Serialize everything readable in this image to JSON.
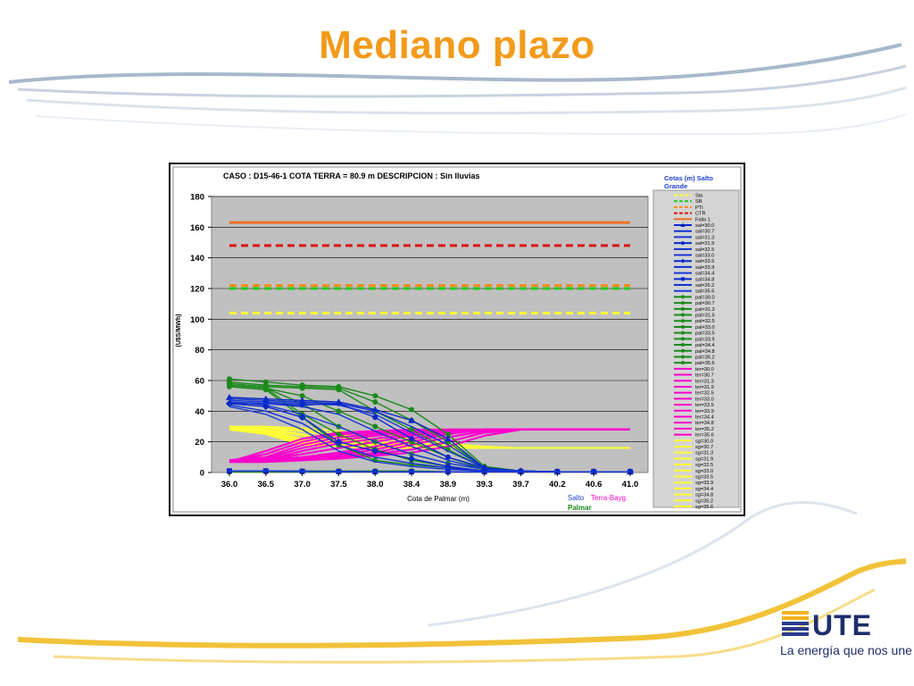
{
  "slide": {
    "title": "Mediano plazo"
  },
  "logo": {
    "text": "UTE",
    "tagline": "La energía que nos une"
  },
  "colors": {
    "title": "#f39a1a",
    "plot_bg": "#c0c0c0",
    "legend_bg": "#d4d4d4",
    "salto": "#1f3fd0",
    "palmar": "#1a8a1a",
    "terra": "#ff00cc",
    "sg": "#ffff33"
  },
  "chart_data": {
    "type": "line",
    "title": "CASO : D15-46-1 COTA TERRA = 80.9 m  DESCRIPCION :    Sin lluvias",
    "xlabel": "Cota de Palmar (m)",
    "ylabel": "(U$S/MWh)",
    "x": [
      36.0,
      36.5,
      37.0,
      37.5,
      38.0,
      38.4,
      38.9,
      39.3,
      39.7,
      40.2,
      40.6,
      41.0
    ],
    "x_ticks": [
      "36.0",
      "36.5",
      "37.0",
      "37.5",
      "38.0",
      "38.4",
      "38.9",
      "39.3",
      "39.7",
      "40.2",
      "40.6",
      "41.0"
    ],
    "ylim": [
      0,
      180
    ],
    "y_ticks": [
      0,
      20,
      40,
      60,
      80,
      100,
      120,
      140,
      160,
      180
    ],
    "grid": true,
    "legend_title": "Cotas (m) Salto Grande",
    "bottom_legend": {
      "salto": "Salto",
      "terra": "Terra-Bayg",
      "palmar": "Palmar"
    },
    "reference_lines": [
      {
        "name": "Sta",
        "value": 104,
        "color": "#ffff33",
        "style": "dashed"
      },
      {
        "name": "SB",
        "value": 120,
        "color": "#22cc22",
        "style": "dashed"
      },
      {
        "name": "PTI",
        "value": 122,
        "color": "#ff8c1a",
        "style": "dashed"
      },
      {
        "name": "CTR",
        "value": 148,
        "color": "#dd1111",
        "style": "dashed"
      },
      {
        "name": "Falla 1",
        "value": 163,
        "color": "#f07020",
        "style": "solid"
      }
    ],
    "series": [
      {
        "name": "sal=30.0",
        "group": "salto",
        "color": "#0a28c8",
        "marker": "triangle",
        "values": [
          49,
          48,
          47,
          46,
          41,
          34,
          22,
          3,
          1,
          0.5,
          0.5,
          0.5
        ]
      },
      {
        "name": "sal=30.7",
        "group": "salto",
        "color": "#1030d0",
        "marker": "none",
        "values": [
          48,
          47,
          46,
          45,
          40,
          30,
          18,
          3,
          1,
          0.5,
          0.5,
          0.5
        ]
      },
      {
        "name": "sal=31.3",
        "group": "salto",
        "color": "#1a38d4",
        "marker": "none",
        "values": [
          47,
          46,
          45,
          44,
          38,
          26,
          14,
          3,
          1,
          0.5,
          0.5,
          0.5
        ]
      },
      {
        "name": "sal=31.9",
        "group": "salto",
        "color": "#0a28c8",
        "marker": "circle",
        "values": [
          45,
          45,
          44,
          45,
          36,
          22,
          10,
          3,
          1,
          0.5,
          0.5,
          0.5
        ]
      },
      {
        "name": "sal=32.5",
        "group": "salto",
        "color": "#1030d0",
        "marker": "none",
        "values": [
          46,
          45,
          43,
          38,
          27,
          17,
          8,
          2,
          1,
          0.5,
          0.5,
          0.5
        ]
      },
      {
        "name": "sal=33.0",
        "group": "salto",
        "color": "#1a38d4",
        "marker": "none",
        "values": [
          46,
          44,
          38,
          30,
          20,
          12,
          6,
          2,
          1,
          0.5,
          0.5,
          0.5
        ]
      },
      {
        "name": "sal=33.5",
        "group": "salto",
        "color": "#0a28c8",
        "marker": "diamond",
        "values": [
          45,
          43,
          36,
          20,
          14,
          9,
          4,
          1,
          0.5,
          0.5,
          0.5,
          0.5
        ]
      },
      {
        "name": "sal=33.9",
        "group": "salto",
        "color": "#1030d0",
        "marker": "none",
        "values": [
          44,
          40,
          32,
          18,
          10,
          6,
          3,
          1,
          0.5,
          0.5,
          0.5,
          0.5
        ]
      },
      {
        "name": "sal=34.4",
        "group": "salto",
        "color": "#1a38d4",
        "marker": "none",
        "values": [
          43,
          38,
          28,
          14,
          7,
          4,
          2,
          1,
          0.5,
          0.5,
          0.5,
          0.5
        ]
      },
      {
        "name": "sal=34.8",
        "group": "salto",
        "color": "#0a28c8",
        "marker": "square",
        "values": [
          1,
          1,
          0.8,
          0.6,
          0.5,
          0.5,
          0.5,
          0.5,
          0.5,
          0.5,
          0.5,
          0.5
        ]
      },
      {
        "name": "sal=35.2",
        "group": "salto",
        "color": "#1030d0",
        "marker": "none",
        "values": [
          1,
          1,
          0.8,
          0.6,
          0.5,
          0.5,
          0.5,
          0.5,
          0.5,
          0.5,
          0.5,
          0.5
        ]
      },
      {
        "name": "sal=35.6",
        "group": "salto",
        "color": "#1a38d4",
        "marker": "none",
        "values": [
          1,
          1,
          0.8,
          0.6,
          0.5,
          0.5,
          0.5,
          0.5,
          0.5,
          0.5,
          0.5,
          0.5
        ]
      },
      {
        "name": "pal=30.0",
        "group": "palmar",
        "color": "#1a8a1a",
        "marker": "circle",
        "values": [
          61,
          59,
          57,
          56,
          50,
          41,
          25,
          4,
          1,
          0.5,
          0.5,
          0.5
        ]
      },
      {
        "name": "pal=30.7",
        "group": "palmar",
        "color": "#1a8a1a",
        "marker": "circle",
        "values": [
          59,
          57,
          56,
          55,
          46,
          34,
          20,
          3,
          1,
          0.5,
          0.5,
          0.5
        ]
      },
      {
        "name": "pal=31.3",
        "group": "palmar",
        "color": "#1a8a1a",
        "marker": "circle",
        "values": [
          58,
          56,
          55,
          54,
          40,
          28,
          15,
          3,
          1,
          0.5,
          0.5,
          0.5
        ]
      },
      {
        "name": "pal=31.9",
        "group": "palmar",
        "color": "#1a8a1a",
        "marker": "circle",
        "values": [
          57,
          55,
          50,
          40,
          30,
          20,
          10,
          2,
          1,
          0.5,
          0.5,
          0.5
        ]
      },
      {
        "name": "pal=32.5",
        "group": "palmar",
        "color": "#1a8a1a",
        "marker": "circle",
        "values": [
          57,
          55,
          45,
          30,
          20,
          12,
          6,
          2,
          1,
          0.5,
          0.5,
          0.5
        ]
      },
      {
        "name": "pal=33.0",
        "group": "palmar",
        "color": "#1a8a1a",
        "marker": "circle",
        "values": [
          57,
          55,
          38,
          25,
          15,
          8,
          4,
          1,
          0.5,
          0.5,
          0.5,
          0.5
        ]
      },
      {
        "name": "pal=33.5",
        "group": "palmar",
        "color": "#1a8a1a",
        "marker": "circle",
        "values": [
          56,
          54,
          36,
          18,
          8,
          5,
          3,
          1,
          0.5,
          0.5,
          0.5,
          0.5
        ]
      },
      {
        "name": "pal=33.9",
        "group": "palmar",
        "color": "#1a8a1a",
        "marker": "circle",
        "values": [
          1,
          1,
          1,
          1,
          1,
          1,
          0.5,
          0.5,
          0.5,
          0.5,
          0.5,
          0.5
        ]
      },
      {
        "name": "pal=34.4",
        "group": "palmar",
        "color": "#1a8a1a",
        "marker": "circle",
        "values": [
          0.5,
          0.5,
          0.5,
          0.5,
          0.5,
          0.5,
          0.5,
          0.5,
          0.5,
          0.5,
          0.5,
          0.5
        ]
      },
      {
        "name": "pal=34.8",
        "group": "palmar",
        "color": "#1a8a1a",
        "marker": "circle",
        "values": [
          0.5,
          0.5,
          0.5,
          0.5,
          0.5,
          0.5,
          0.5,
          0.5,
          0.5,
          0.5,
          0.5,
          0.5
        ]
      },
      {
        "name": "pal=35.2",
        "group": "palmar",
        "color": "#1a8a1a",
        "marker": "circle",
        "values": [
          0.5,
          0.5,
          0.5,
          0.5,
          0.5,
          0.5,
          0.5,
          0.5,
          0.5,
          0.5,
          0.5,
          0.5
        ]
      },
      {
        "name": "pal=35.6",
        "group": "palmar",
        "color": "#1a8a1a",
        "marker": "circle",
        "values": [
          0.5,
          0.5,
          0.5,
          0.5,
          0.5,
          0.5,
          0.5,
          0.5,
          0.5,
          0.5,
          0.5,
          0.5
        ]
      },
      {
        "name": "ter=30.0",
        "group": "terra",
        "color": "#ff00cc",
        "marker": "none",
        "values": [
          8,
          8,
          10,
          12,
          17,
          22,
          26,
          28,
          28,
          28,
          28,
          28
        ]
      },
      {
        "name": "ter=30.7",
        "group": "terra",
        "color": "#ff00cc",
        "marker": "none",
        "values": [
          8,
          8,
          12,
          16,
          20,
          24,
          27,
          28,
          28,
          28,
          28,
          28
        ]
      },
      {
        "name": "ter=31.3",
        "group": "terra",
        "color": "#ff00cc",
        "marker": "none",
        "values": [
          8,
          8,
          14,
          19,
          22,
          25,
          27,
          28,
          28,
          28,
          28,
          28
        ]
      },
      {
        "name": "ter=31.9",
        "group": "terra",
        "color": "#ff00cc",
        "marker": "none",
        "values": [
          8,
          9,
          16,
          21,
          24,
          26,
          27,
          28,
          28,
          28,
          28,
          28
        ]
      },
      {
        "name": "ter=32.5",
        "group": "terra",
        "color": "#ff00cc",
        "marker": "none",
        "values": [
          8,
          10,
          18,
          23,
          25,
          27,
          28,
          28,
          28,
          28,
          28,
          28
        ]
      },
      {
        "name": "ter=33.0",
        "group": "terra",
        "color": "#ff00cc",
        "marker": "none",
        "values": [
          7,
          12,
          20,
          25,
          26,
          27,
          28,
          28,
          28,
          28,
          28,
          28
        ]
      },
      {
        "name": "ter=33.5",
        "group": "terra",
        "color": "#ff00cc",
        "marker": "none",
        "values": [
          7,
          14,
          22,
          26,
          27,
          28,
          28,
          28,
          28,
          28,
          28,
          28
        ]
      },
      {
        "name": "ter=33.9",
        "group": "terra",
        "color": "#ff00cc",
        "marker": "none",
        "values": [
          7,
          8,
          9,
          10,
          12,
          15,
          20,
          26,
          28,
          28,
          28,
          28
        ]
      },
      {
        "name": "ter=34.4",
        "group": "terra",
        "color": "#ff00cc",
        "marker": "none",
        "values": [
          7,
          7,
          8,
          9,
          11,
          13,
          17,
          24,
          28,
          28,
          28,
          28
        ]
      },
      {
        "name": "ter=34.8",
        "group": "terra",
        "color": "#ff00cc",
        "marker": "none",
        "values": [
          7,
          7,
          8,
          10,
          13,
          18,
          23,
          27,
          28,
          28,
          28,
          28
        ]
      },
      {
        "name": "ter=35.2",
        "group": "terra",
        "color": "#ff00cc",
        "marker": "none",
        "values": [
          7,
          7,
          9,
          11,
          15,
          20,
          25,
          28,
          28,
          28,
          28,
          28
        ]
      },
      {
        "name": "ter=35.6",
        "group": "terra",
        "color": "#ff00cc",
        "marker": "none",
        "values": [
          7,
          8,
          10,
          13,
          17,
          22,
          26,
          28,
          28,
          28,
          28,
          28
        ]
      },
      {
        "name": "sg=30.0",
        "group": "sg",
        "color": "#ffff33",
        "marker": "none",
        "values": [
          30,
          30,
          29,
          27,
          25,
          22,
          19,
          17,
          16,
          16,
          16,
          16
        ]
      },
      {
        "name": "sg=30.7",
        "group": "sg",
        "color": "#ffff33",
        "marker": "none",
        "values": [
          30,
          30,
          28,
          25,
          22,
          20,
          18,
          16,
          16,
          16,
          16,
          16
        ]
      },
      {
        "name": "sg=31.3",
        "group": "sg",
        "color": "#ffff33",
        "marker": "none",
        "values": [
          29,
          29,
          27,
          23,
          20,
          19,
          17,
          16,
          16,
          16,
          16,
          16
        ]
      },
      {
        "name": "sg=31.9",
        "group": "sg",
        "color": "#ffff33",
        "marker": "none",
        "values": [
          29,
          29,
          25,
          21,
          19,
          18,
          17,
          16,
          16,
          16,
          16,
          16
        ]
      },
      {
        "name": "sg=32.5",
        "group": "sg",
        "color": "#ffff33",
        "marker": "none",
        "values": [
          29,
          28,
          24,
          20,
          18,
          17,
          16,
          16,
          16,
          16,
          16,
          16
        ]
      },
      {
        "name": "sg=33.0",
        "group": "sg",
        "color": "#ffff33",
        "marker": "none",
        "values": [
          29,
          28,
          22,
          19,
          17,
          17,
          16,
          16,
          16,
          16,
          16,
          16
        ]
      },
      {
        "name": "sg=33.5",
        "group": "sg",
        "color": "#ffff33",
        "marker": "none",
        "values": [
          28,
          27,
          21,
          18,
          17,
          16,
          16,
          16,
          16,
          16,
          16,
          16
        ]
      },
      {
        "name": "sg=33.9",
        "group": "sg",
        "color": "#ffff33",
        "marker": "none",
        "values": [
          28,
          27,
          20,
          18,
          17,
          16,
          16,
          16,
          16,
          16,
          16,
          16
        ]
      },
      {
        "name": "sg=34.4",
        "group": "sg",
        "color": "#ffff33",
        "marker": "none",
        "values": [
          28,
          26,
          19,
          17,
          16,
          16,
          16,
          16,
          16,
          16,
          16,
          16
        ]
      },
      {
        "name": "sg=34.8",
        "group": "sg",
        "color": "#ffff33",
        "marker": "none",
        "values": [
          28,
          26,
          19,
          17,
          16,
          16,
          16,
          16,
          16,
          16,
          16,
          16
        ]
      },
      {
        "name": "sg=35.2",
        "group": "sg",
        "color": "#ffff33",
        "marker": "none",
        "values": [
          28,
          25,
          18,
          17,
          16,
          16,
          16,
          16,
          16,
          16,
          16,
          16
        ]
      },
      {
        "name": "sg=35.6",
        "group": "sg",
        "color": "#ffff33",
        "marker": "none",
        "values": [
          28,
          25,
          18,
          17,
          16,
          16,
          16,
          16,
          16,
          16,
          16,
          16
        ]
      }
    ]
  }
}
